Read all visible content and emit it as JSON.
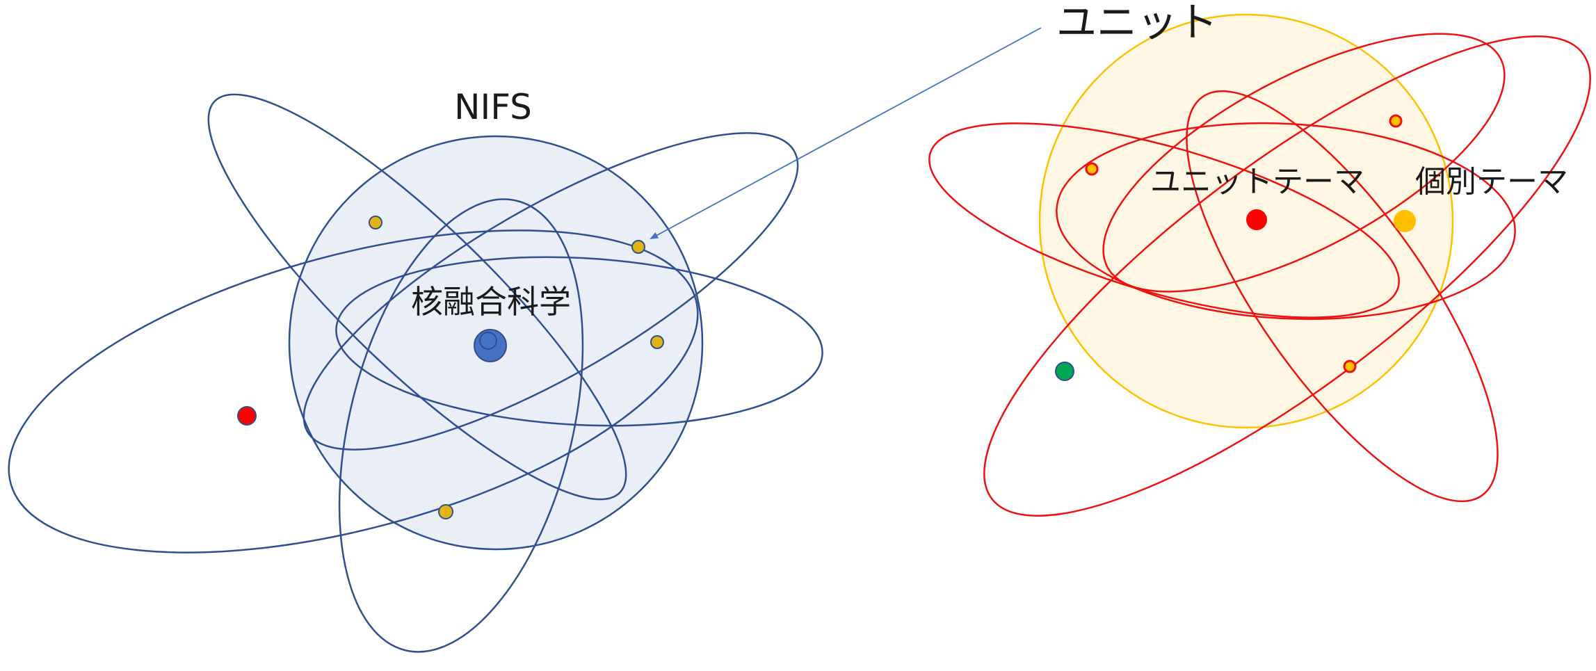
{
  "labels": {
    "nifs": "NIFS",
    "fusion_science": "核融合科学",
    "unit": "ユニット",
    "unit_theme": "ユニットテーマ",
    "individual_theme": "個別テーマ"
  },
  "colors": {
    "nifs_stroke": "#2f4f8f",
    "nifs_fill": "#e9eef7",
    "nucleus_blue": "#4472c4",
    "electron_gold": "#e3b417",
    "accent_red": "#ff0000",
    "unit_orbit_red": "#ee1111",
    "unit_sphere_stroke": "#ffc000",
    "unit_sphere_fill": "#fff7e3",
    "green_dot": "#00a651",
    "arrow_blue": "#4472c4"
  }
}
